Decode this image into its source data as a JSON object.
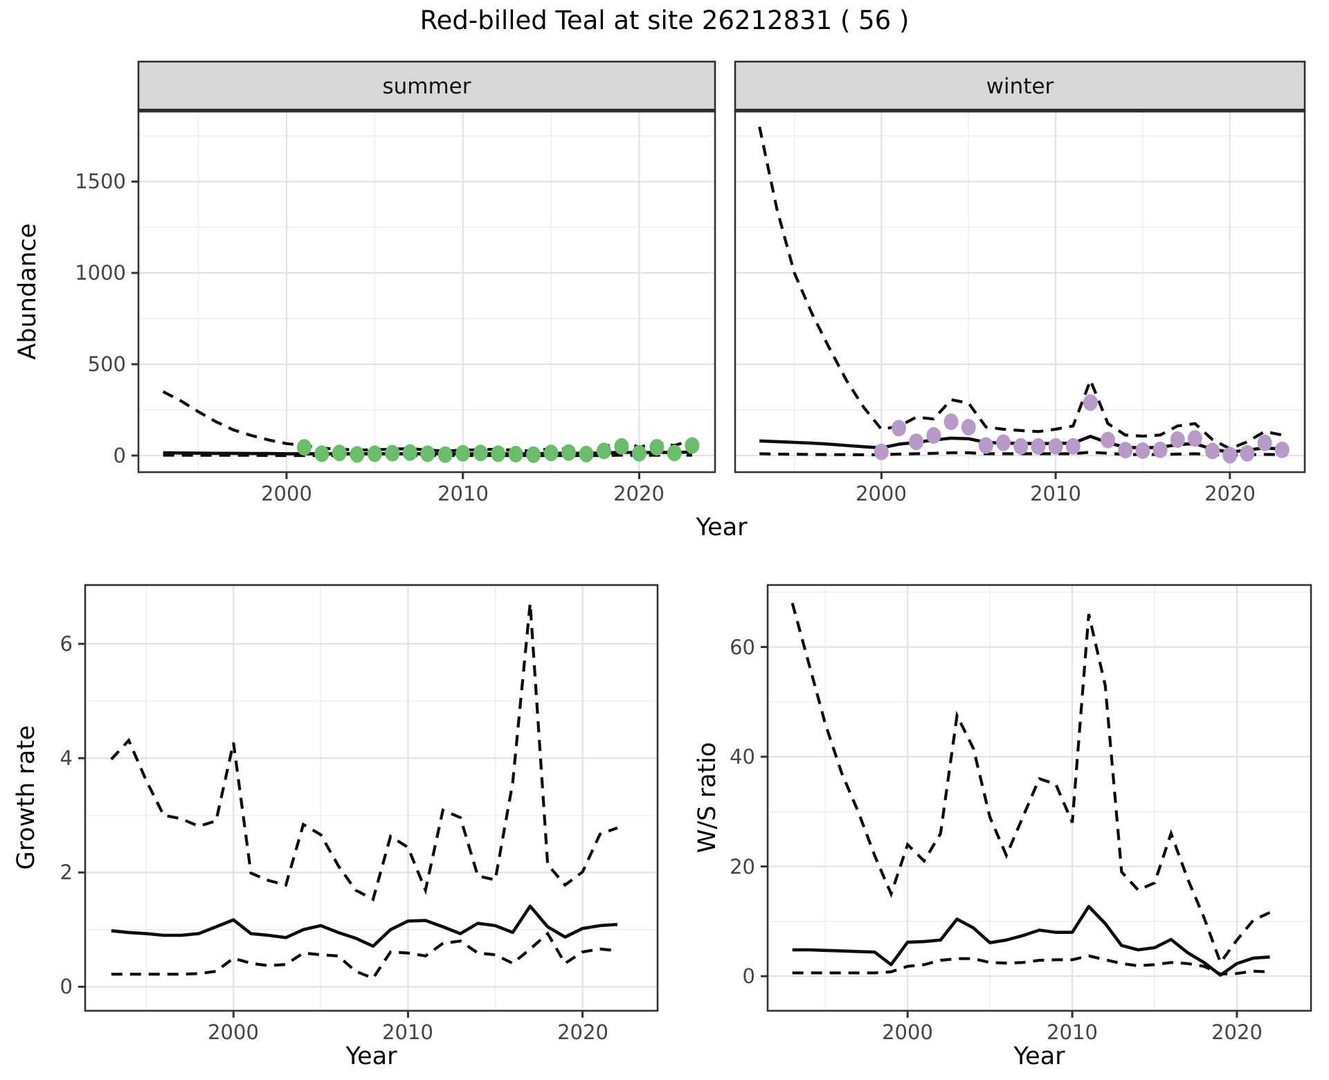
{
  "title": "Red-billed Teal at site 26212831 ( 56 )",
  "colors": {
    "summer_point": "#6ABE6B",
    "winter_point": "#B89AC8",
    "line": "#0d0d0d",
    "grid_major": "#E2E2E2",
    "grid_minor": "#EFEFEF",
    "strip_bg": "#D8D8D8",
    "panel_border": "#333333",
    "tick_text": "#454545"
  },
  "chart_data": {
    "type": "line",
    "top": {
      "ylabel": "Abundance",
      "xlabel": "Year",
      "y_ticks": [
        0,
        500,
        1000,
        1500
      ],
      "x_ticks": [
        2000,
        2010,
        2020
      ],
      "ylim": [
        -91,
        1884
      ],
      "xlim": [
        1991.6,
        2024.3
      ],
      "year_start": 1993,
      "panels": [
        {
          "strip": "summer",
          "series": {
            "upper": [
              350,
              300,
              240,
              185,
              140,
              110,
              85,
              65,
              55,
              40,
              35,
              30,
              32,
              35,
              38,
              30,
              25,
              30,
              32,
              35,
              28,
              25,
              38,
              35,
              25,
              45,
              80,
              45,
              70,
              55,
              85
            ],
            "median": [
              15,
              14,
              13,
              12,
              12,
              11,
              11,
              10,
              10,
              10,
              10,
              10,
              10,
              10,
              10,
              10,
              10,
              10,
              10,
              10,
              10,
              10,
              12,
              12,
              12,
              14,
              18,
              15,
              18,
              16,
              20
            ],
            "lower": [
              2,
              2,
              1,
              1,
              1,
              1,
              0,
              0,
              0,
              0,
              0,
              0,
              0,
              0,
              0,
              0,
              0,
              0,
              0,
              0,
              0,
              0,
              0,
              0,
              0,
              0,
              2,
              1,
              2,
              1,
              2
            ]
          },
          "points": {
            "year_start": 2001,
            "values": [
              45,
              10,
              14,
              6,
              10,
              13,
              16,
              10,
              5,
              12,
              14,
              10,
              8,
              5,
              14,
              16,
              8,
              25,
              50,
              12,
              45,
              14,
              55
            ]
          }
        },
        {
          "strip": "winter",
          "series": {
            "upper": [
              1800,
              1350,
              1000,
              780,
              590,
              410,
              262,
              144,
              160,
              210,
              200,
              306,
              287,
              156,
              144,
              137,
              131,
              144,
              162,
              412,
              175,
              112,
              106,
              112,
              162,
              175,
              87,
              37,
              75,
              131,
              112
            ],
            "median": [
              80,
              76,
              72,
              68,
              62,
              55,
              48,
              42,
              62,
              72,
              85,
              95,
              92,
              72,
              68,
              66,
              65,
              66,
              68,
              105,
              70,
              45,
              42,
              45,
              60,
              65,
              35,
              18,
              30,
              42,
              35
            ],
            "lower": [
              10,
              8,
              7,
              6,
              5,
              5,
              4,
              4,
              8,
              10,
              12,
              15,
              15,
              10,
              10,
              10,
              10,
              10,
              10,
              18,
              12,
              6,
              5,
              6,
              8,
              10,
              5,
              2,
              4,
              6,
              5
            ]
          },
          "points": {
            "year_start": 2000,
            "values": [
              20,
              150,
              75,
              110,
              185,
              155,
              55,
              70,
              50,
              50,
              50,
              50,
              290,
              85,
              30,
              27,
              31,
              87,
              94,
              25,
              2,
              12,
              69,
              31
            ]
          }
        }
      ]
    },
    "bottom": [
      {
        "ylabel": "Growth rate",
        "xlabel": "Year",
        "y_ticks": [
          0,
          2,
          4,
          6
        ],
        "x_ticks": [
          2000,
          2010,
          2020
        ],
        "ylim": [
          -0.42,
          7.03
        ],
        "xlim": [
          1991.5,
          2024.3
        ],
        "year_start": 1993,
        "series": {
          "upper": [
            3.98,
            4.31,
            3.61,
            3.0,
            2.94,
            2.81,
            2.9,
            4.27,
            1.99,
            1.86,
            1.78,
            2.84,
            2.66,
            2.12,
            1.69,
            1.53,
            2.63,
            2.44,
            1.69,
            3.09,
            2.96,
            1.94,
            1.87,
            3.57,
            6.71,
            2.14,
            1.78,
            2.01,
            2.67,
            2.78
          ],
          "median": [
            0.98,
            0.95,
            0.93,
            0.9,
            0.9,
            0.93,
            1.05,
            1.17,
            0.93,
            0.9,
            0.86,
            1.0,
            1.07,
            0.95,
            0.85,
            0.71,
            1.0,
            1.15,
            1.16,
            1.05,
            0.93,
            1.11,
            1.07,
            0.95,
            1.41,
            1.05,
            0.87,
            1.02,
            1.07,
            1.09
          ],
          "lower": [
            0.22,
            0.22,
            0.22,
            0.22,
            0.22,
            0.23,
            0.27,
            0.5,
            0.41,
            0.37,
            0.39,
            0.59,
            0.56,
            0.54,
            0.27,
            0.15,
            0.61,
            0.59,
            0.54,
            0.76,
            0.8,
            0.59,
            0.56,
            0.41,
            0.66,
            0.93,
            0.41,
            0.61,
            0.66,
            0.63
          ]
        }
      },
      {
        "ylabel": "W/S ratio",
        "xlabel": "Year",
        "y_ticks": [
          0,
          20,
          40,
          60
        ],
        "ylim": [
          -6.3,
          71.3
        ],
        "xlim": [
          1991.5,
          2024.5
        ],
        "x_ticks": [
          2000,
          2010,
          2020
        ],
        "year_start": 1993,
        "series": {
          "upper": [
            68,
            57,
            46,
            37,
            30,
            22,
            15,
            24,
            21,
            26,
            47.5,
            41.5,
            29,
            22,
            29,
            36,
            35,
            28,
            66,
            53,
            19,
            15.7,
            17,
            26,
            17.8,
            10.7,
            2.5,
            6.6,
            10.2,
            11.6
          ],
          "median": [
            4.8,
            4.8,
            4.7,
            4.6,
            4.5,
            4.4,
            2.1,
            6.2,
            6.3,
            6.6,
            10.4,
            8.8,
            6.1,
            6.6,
            7.4,
            8.4,
            8.0,
            8.0,
            12.7,
            9.6,
            5.6,
            4.8,
            5.2,
            6.7,
            4.3,
            2.5,
            0.2,
            2.3,
            3.3,
            3.5
          ],
          "lower": [
            0.6,
            0.6,
            0.6,
            0.6,
            0.6,
            0.6,
            0.8,
            1.8,
            2.1,
            2.9,
            3.2,
            3.2,
            2.5,
            2.4,
            2.5,
            2.9,
            3.0,
            3.0,
            3.7,
            3.0,
            2.3,
            1.9,
            2.1,
            2.5,
            2.3,
            1.8,
            0.4,
            0.5,
            0.9,
            0.8
          ]
        }
      }
    ]
  }
}
